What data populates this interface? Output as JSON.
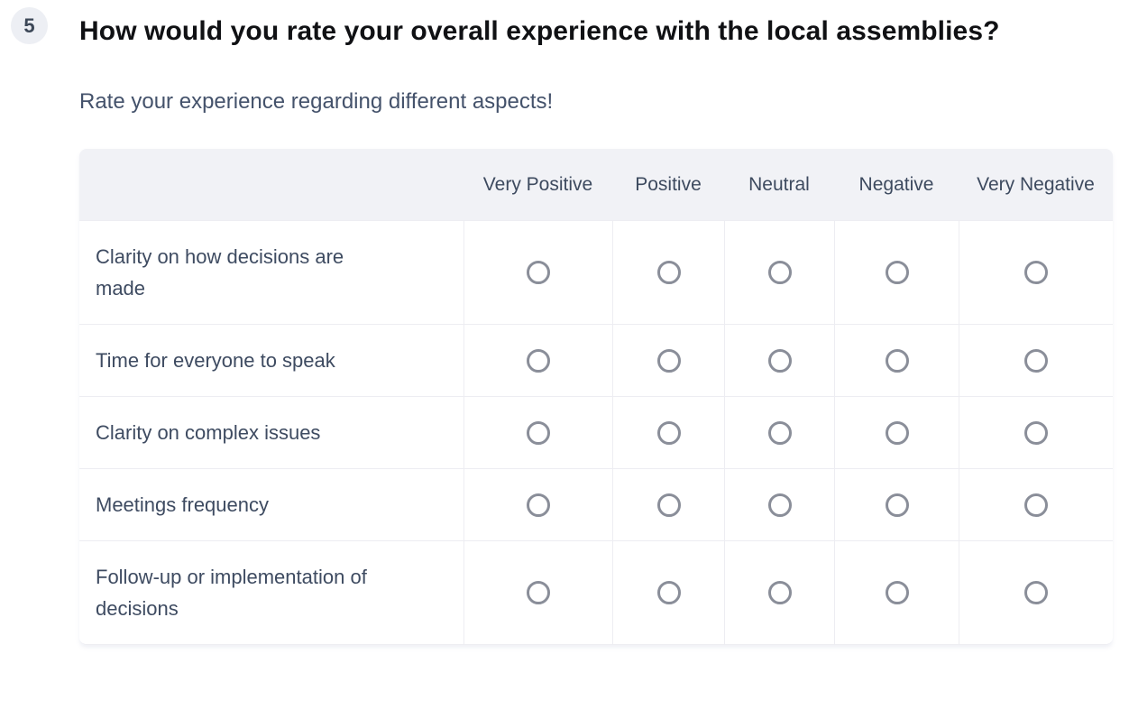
{
  "question": {
    "number": "5",
    "title": "How would you rate your overall experience with the local assemblies?",
    "subtitle": "Rate your experience regarding different aspects!"
  },
  "matrix": {
    "columns": [
      "Very Positive",
      "Positive",
      "Neutral",
      "Negative",
      "Very Negative"
    ],
    "column_keys": [
      "very-positive",
      "positive",
      "neutral",
      "negative",
      "very-negative"
    ],
    "rows": [
      "Clarity on how decisions are made",
      "Time for everyone to speak",
      "Clarity on complex issues",
      "Meetings frequency",
      "Follow-up or implementation of decisions"
    ],
    "selected": null
  },
  "colors": {
    "header_background": "#f1f2f6",
    "table_border": "#ededf2",
    "radio_border": "#8a8e99",
    "badge_background": "#edeff4",
    "badge_text": "#3c4757",
    "title_text": "#101114",
    "subtitle_text": "#44526b",
    "cell_text": "#3e4b61"
  }
}
